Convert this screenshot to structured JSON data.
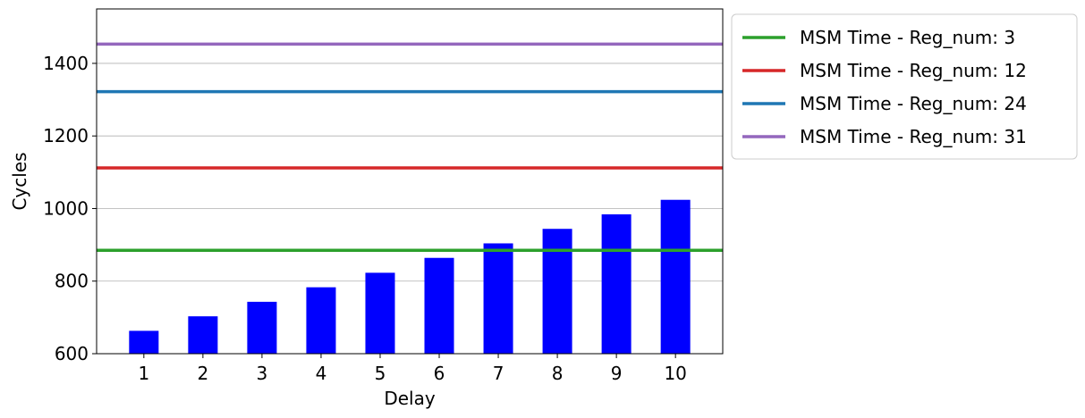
{
  "chart_data": {
    "type": "bar",
    "xlabel": "Delay",
    "ylabel": "Cycles",
    "categories": [
      "1",
      "2",
      "3",
      "4",
      "5",
      "6",
      "7",
      "8",
      "9",
      "10"
    ],
    "values": [
      663,
      703,
      743,
      783,
      823,
      864,
      904,
      944,
      984,
      1024
    ],
    "bar_color": "#0000ff",
    "ylim": [
      600,
      1550
    ],
    "yticks": [
      600,
      800,
      1000,
      1200,
      1400
    ],
    "grid": "y",
    "legend_position": "outside-top-right",
    "reference_lines": [
      {
        "name": "MSM Time - Reg_num: 3",
        "value": 885,
        "color": "#2ca02c"
      },
      {
        "name": "MSM Time - Reg_num: 12",
        "value": 1112,
        "color": "#d62728"
      },
      {
        "name": "MSM Time - Reg_num: 24",
        "value": 1322,
        "color": "#1f77b4"
      },
      {
        "name": "MSM Time - Reg_num: 31",
        "value": 1453,
        "color": "#9467bd"
      }
    ]
  }
}
